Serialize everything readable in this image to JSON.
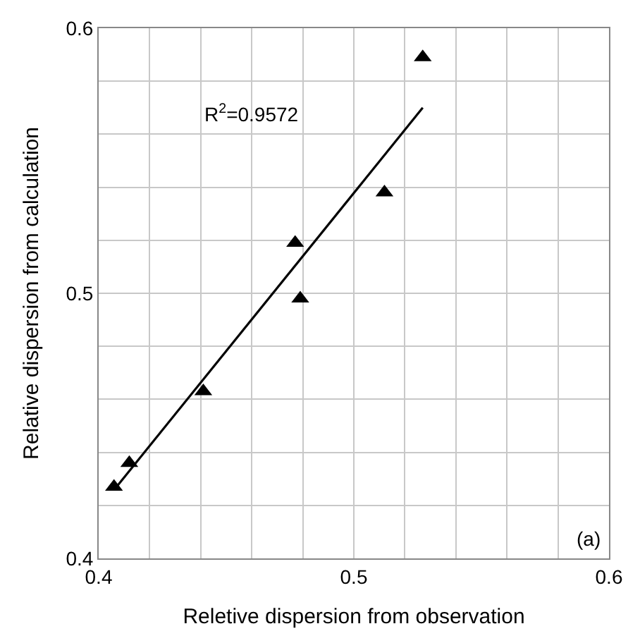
{
  "chart_data": {
    "type": "scatter",
    "xlabel": "Reletive dispersion from observation",
    "ylabel": "Relative dispersion from calculation",
    "x": [
      0.406,
      0.412,
      0.441,
      0.477,
      0.479,
      0.512,
      0.527
    ],
    "series": [
      {
        "color": "#000000",
        "marker": "triangle",
        "values": [
          0.427,
          0.436,
          0.463,
          0.519,
          0.498,
          0.538,
          0.589
        ]
      },
      {
        "type": "line",
        "color": "#000000",
        "x": [
          0.407,
          0.527
        ],
        "values": [
          0.427,
          0.57
        ]
      }
    ],
    "annotations": [
      "R$^{2}$=0.9572",
      "(a)"
    ],
    "xlim": [
      0.4,
      0.6
    ],
    "ylim": [
      0.4,
      0.6
    ],
    "xticks": [
      0.4,
      {
        "value": 0.42,
        "label": null
      },
      {
        "value": 0.44,
        "label": null
      },
      {
        "value": 0.46,
        "label": null
      },
      {
        "value": 0.48,
        "label": null
      },
      0.5,
      {
        "value": 0.52,
        "label": null
      },
      {
        "value": 0.54,
        "label": null
      },
      {
        "value": 0.56,
        "label": null
      },
      {
        "value": 0.58,
        "label": null
      },
      0.6
    ],
    "yticks": [
      0.4,
      {
        "value": 0.42,
        "label": null
      },
      {
        "value": 0.44,
        "label": null
      },
      {
        "value": 0.46,
        "label": null
      },
      {
        "value": 0.48,
        "label": null
      },
      0.5,
      {
        "value": 0.52,
        "label": null
      },
      {
        "value": 0.54,
        "label": null
      },
      {
        "value": 0.56,
        "label": null
      },
      {
        "value": 0.58,
        "label": null
      },
      0.6
    ],
    "grid": true
  }
}
